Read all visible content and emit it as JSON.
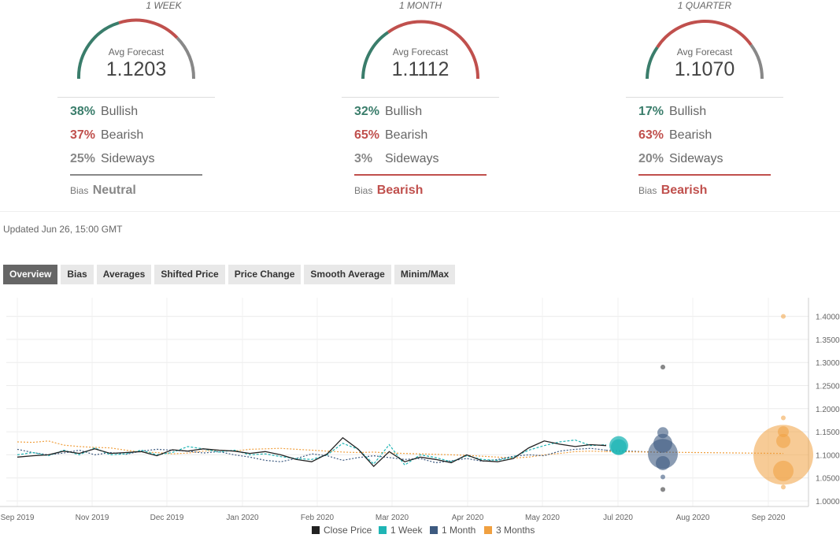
{
  "forecasts": [
    {
      "period": "1 WEEK",
      "avg_label": "Avg Forecast",
      "avg_value": "1.1203",
      "bullish_pct": "38%",
      "bullish_label": "Bullish",
      "bearish_pct": "37%",
      "bearish_label": "Bearish",
      "sideways_pct": "25%",
      "sideways_label": "Sideways",
      "bias_label": "Bias",
      "bias_value": "Neutral",
      "bias_color": "#888888"
    },
    {
      "period": "1 MONTH",
      "avg_label": "Avg Forecast",
      "avg_value": "1.1112",
      "bullish_pct": "32%",
      "bullish_label": "Bullish",
      "bearish_pct": "65%",
      "bearish_label": "Bearish",
      "sideways_pct": "3%",
      "sideways_label": "Sideways",
      "bias_label": "Bias",
      "bias_value": "Bearish",
      "bias_color": "#c0504d"
    },
    {
      "period": "1 QUARTER",
      "avg_label": "Avg Forecast",
      "avg_value": "1.1070",
      "bullish_pct": "17%",
      "bullish_label": "Bullish",
      "bearish_pct": "63%",
      "bearish_label": "Bearish",
      "sideways_pct": "20%",
      "sideways_label": "Sideways",
      "bias_label": "Bias",
      "bias_value": "Bearish",
      "bias_color": "#c0504d"
    }
  ],
  "colors": {
    "bullish": "#3a7d6b",
    "bearish": "#c0504d",
    "sideways": "#888888"
  },
  "updated": "Updated Jun 26, 15:00 GMT",
  "tabs": [
    "Overview",
    "Bias",
    "Averages",
    "Shifted Price",
    "Price Change",
    "Smooth Average",
    "Minim/Max"
  ],
  "active_tab": "Overview",
  "chart_data": {
    "type": "line",
    "x_ticks": [
      "Sep 2019",
      "Nov 2019",
      "Dec 2019",
      "Jan 2020",
      "Feb 2020",
      "Mar 2020",
      "Apr 2020",
      "May 2020",
      "Jul 2020",
      "Aug 2020",
      "Sep 2020"
    ],
    "y_ticks": [
      "1.4000",
      "1.3500",
      "1.3000",
      "1.2500",
      "1.2000",
      "1.1500",
      "1.1000",
      "1.0500",
      "1.0000"
    ],
    "ylim": [
      0.99,
      1.42
    ],
    "legend": [
      "Close Price",
      "1 Week",
      "1 Month",
      "3 Months"
    ],
    "legend_position": "bottom",
    "colors": {
      "close": "#222222",
      "week": "#1fb5b5",
      "month": "#3d5a80",
      "quarter": "#f0a040"
    },
    "close_price": [
      1.095,
      1.098,
      1.1,
      1.108,
      1.103,
      1.113,
      1.103,
      1.105,
      1.107,
      1.098,
      1.111,
      1.108,
      1.113,
      1.11,
      1.108,
      1.103,
      1.107,
      1.1,
      1.09,
      1.085,
      1.102,
      1.137,
      1.112,
      1.075,
      1.107,
      1.085,
      1.095,
      1.09,
      1.083,
      1.1,
      1.087,
      1.085,
      1.092,
      1.115,
      1.13,
      1.123,
      1.118,
      1.122,
      1.12
    ],
    "week_line": [
      1.1,
      1.105,
      1.098,
      1.11,
      1.1,
      1.115,
      1.1,
      1.102,
      1.11,
      1.1,
      1.105,
      1.118,
      1.113,
      1.106,
      1.11,
      1.1,
      1.102,
      1.096,
      1.092,
      1.09,
      1.1,
      1.125,
      1.112,
      1.08,
      1.122,
      1.078,
      1.1,
      1.094,
      1.085,
      1.098,
      1.09,
      1.088,
      1.095,
      1.11,
      1.12,
      1.128,
      1.132,
      1.12,
      1.122
    ],
    "month_line": [
      1.112,
      1.105,
      1.1,
      1.104,
      1.11,
      1.1,
      1.105,
      1.101,
      1.108,
      1.112,
      1.11,
      1.108,
      1.104,
      1.107,
      1.1,
      1.095,
      1.088,
      1.085,
      1.092,
      1.102,
      1.098,
      1.088,
      1.094,
      1.098,
      1.094,
      1.09,
      1.092,
      1.083,
      1.087,
      1.092,
      1.086,
      1.09,
      1.097,
      1.1,
      1.098,
      1.108,
      1.112,
      1.114,
      1.11
    ],
    "quarter_line": [
      1.128,
      1.127,
      1.13,
      1.121,
      1.118,
      1.116,
      1.115,
      1.11,
      1.106,
      1.105,
      1.102,
      1.104,
      1.108,
      1.11,
      1.108,
      1.112,
      1.113,
      1.114,
      1.112,
      1.11,
      1.108,
      1.106,
      1.105,
      1.106,
      1.104,
      1.103,
      1.102,
      1.101,
      1.1,
      1.099,
      1.097,
      1.095,
      1.093,
      1.095,
      1.1,
      1.103,
      1.107,
      1.108,
      1.107
    ],
    "forecast_bubbles": {
      "week": [
        {
          "v": 1.12,
          "s": 12
        },
        {
          "v": 1.117,
          "s": 10
        }
      ],
      "month": [
        {
          "v": 1.148,
          "s": 7
        },
        {
          "v": 1.125,
          "s": 12
        },
        {
          "v": 1.102,
          "s": 19
        },
        {
          "v": 1.082,
          "s": 9
        },
        {
          "v": 1.052,
          "s": 3
        },
        {
          "v": 1.025,
          "s": 3
        },
        {
          "v": 1.29,
          "s": 3
        }
      ],
      "quarter": [
        {
          "v": 1.1,
          "s": 38
        },
        {
          "v": 1.15,
          "s": 7
        },
        {
          "v": 1.13,
          "s": 9
        },
        {
          "v": 1.065,
          "s": 13
        },
        {
          "v": 1.18,
          "s": 3
        },
        {
          "v": 1.4,
          "s": 3
        },
        {
          "v": 1.03,
          "s": 3
        }
      ]
    }
  }
}
